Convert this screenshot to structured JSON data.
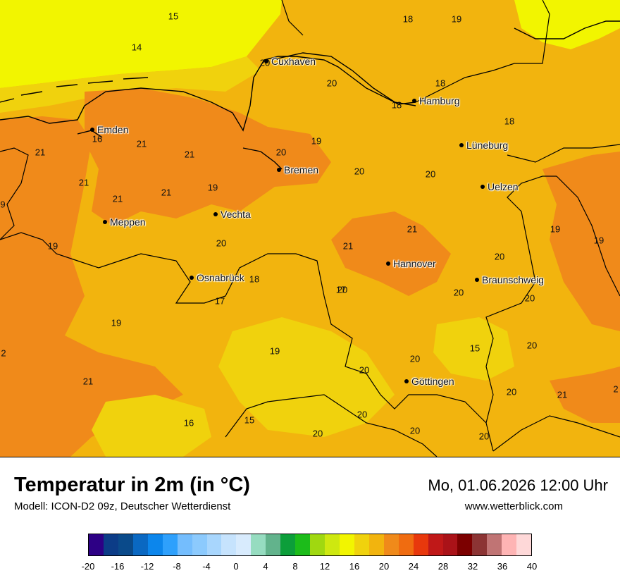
{
  "title": "Temperatur in 2m (in °C)",
  "model": "Modell: ICON-D2 09z, Deutscher Wetterdienst",
  "datetime": "Mo, 01.06.2026 12:00 Uhr",
  "website": "www.wetterblick.com",
  "colors": {
    "sea": "#f2f500",
    "warm_20": "#f2b40e",
    "warm_22": "#f08a1a",
    "light_18": "#f0d20d",
    "border": "#000000"
  },
  "cities": [
    {
      "name": "Cuxhaven"
    },
    {
      "name": "Hamburg"
    },
    {
      "name": "Emden"
    },
    {
      "name": "Lüneburg"
    },
    {
      "name": "Bremen"
    },
    {
      "name": "Uelzen"
    },
    {
      "name": "Vechta"
    },
    {
      "name": "Meppen"
    },
    {
      "name": "Hannover"
    },
    {
      "name": "Osnabrück"
    },
    {
      "name": "Braunschweig"
    },
    {
      "name": "Göttingen"
    }
  ],
  "values": [
    "15",
    "14",
    "18",
    "19",
    "20",
    "20",
    "18",
    "18",
    "16",
    "18",
    "21",
    "21",
    "19",
    "21",
    "20",
    "20",
    "21",
    "21",
    "21",
    "19",
    "20",
    "9",
    "19",
    "20",
    "21",
    "21",
    "19",
    "19",
    "20",
    "18",
    "17",
    "20",
    "20",
    "20",
    "2",
    "17",
    "19",
    "19",
    "15",
    "20",
    "20",
    "20",
    "21",
    "16",
    "15",
    "20",
    "20",
    "20",
    "20",
    "20",
    "21",
    "2"
  ],
  "legend": {
    "colors": [
      "#2d0085",
      "#0c3c87",
      "#0a4a8a",
      "#0a68c2",
      "#0c86ec",
      "#2ea0fc",
      "#74bdfd",
      "#8ccafd",
      "#a8d6fd",
      "#c6e3fd",
      "#d8ebfd",
      "#96dcc0",
      "#62b38c",
      "#0c9e3a",
      "#1cbc1a",
      "#a0d810",
      "#cee810",
      "#f2f500",
      "#f0d20d",
      "#f2b40e",
      "#f08a1a",
      "#f06c10",
      "#e8380c",
      "#c01818",
      "#aa1218",
      "#7c0000",
      "#8c3434",
      "#c07474",
      "#feb4b4",
      "#fed8d8"
    ],
    "ticks": [
      "-20",
      "-16",
      "-12",
      "-8",
      "-4",
      "0",
      "4",
      "8",
      "12",
      "16",
      "20",
      "24",
      "28",
      "32",
      "36",
      "40"
    ]
  }
}
